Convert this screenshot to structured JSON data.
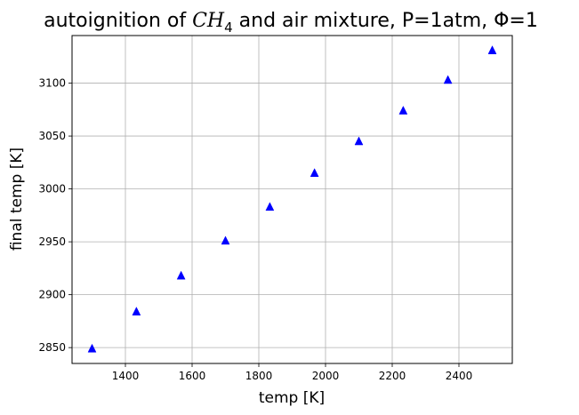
{
  "chart_data": {
    "type": "scatter",
    "title": {
      "prefix": "autoignition of ",
      "formula_base": "CH",
      "formula_sub": "4",
      "suffix": " and air mixture, P=1atm, Φ=1"
    },
    "xlabel": "temp [K]",
    "ylabel": "final temp [K]",
    "xlim": [
      1240,
      2560
    ],
    "ylim": [
      2835,
      3145
    ],
    "xticks": [
      1400,
      1600,
      1800,
      2000,
      2200,
      2400
    ],
    "yticks": [
      2850,
      2900,
      2950,
      3000,
      3050,
      3100
    ],
    "grid": true,
    "marker": "triangle-up",
    "color": "#0000ff",
    "series": [
      {
        "x": [
          1300,
          1433,
          1567,
          1700,
          1833,
          1967,
          2100,
          2233,
          2367,
          2500
        ],
        "y": [
          2849,
          2884,
          2918,
          2951,
          2983,
          3015,
          3045,
          3074,
          3103,
          3131
        ]
      }
    ]
  }
}
